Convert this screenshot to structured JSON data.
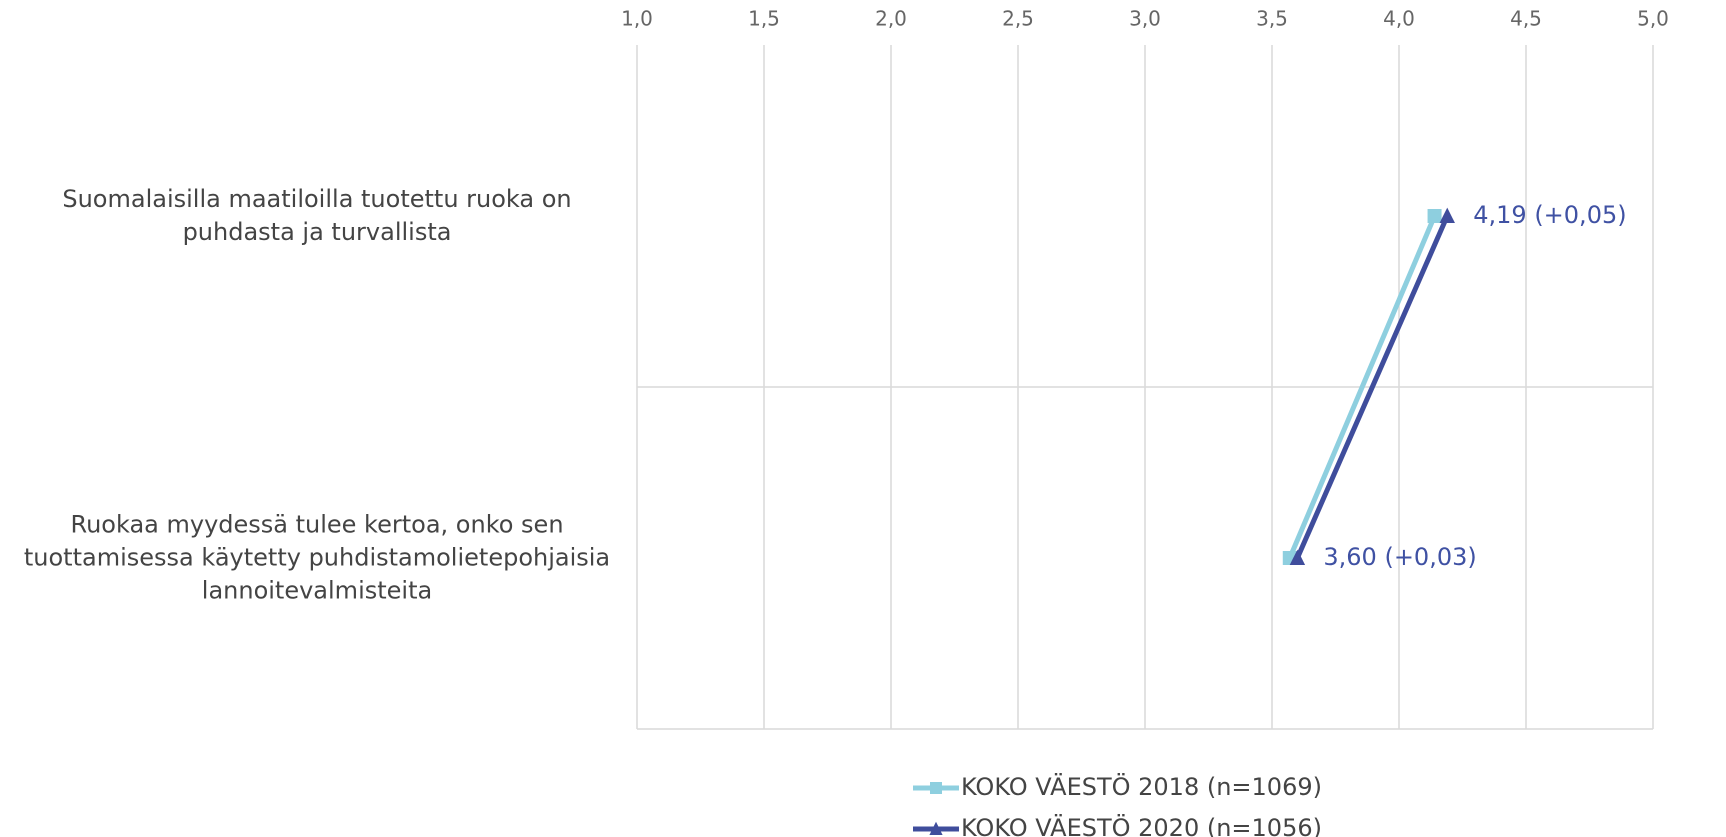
{
  "chart_data": {
    "type": "line",
    "categories": [
      "Suomalaisilla maatiloilla tuotettu ruoka on puhdasta ja turvallista",
      "Ruokaa myydessä tulee kertoa, onko sen tuottamisessa käytetty puhdistamolietepohjaisia lannoitevalmisteita"
    ],
    "series": [
      {
        "name": "KOKO VÄESTÖ 2018 (n=1069)",
        "color": "#8ecfdf",
        "marker": "square",
        "values": [
          4.14,
          3.57
        ]
      },
      {
        "name": "KOKO VÄESTÖ 2020 (n=1056)",
        "color": "#3f4d9c",
        "marker": "triangle",
        "values": [
          4.19,
          3.6
        ],
        "value_labels": [
          "4,19 (+0,05)",
          "3,60 (+0,03)"
        ]
      }
    ],
    "xlim": [
      1,
      5
    ],
    "xticks": [
      {
        "value": 1,
        "label": "1,0"
      },
      {
        "value": 1.5,
        "label": "1,5"
      },
      {
        "value": 2,
        "label": "2,0"
      },
      {
        "value": 2.5,
        "label": "2,5"
      },
      {
        "value": 3,
        "label": "3,0"
      },
      {
        "value": 3.5,
        "label": "3,5"
      },
      {
        "value": 4,
        "label": "4,0"
      },
      {
        "value": 4.5,
        "label": "4,5"
      },
      {
        "value": 5,
        "label": "5,0"
      }
    ],
    "grid": true
  }
}
